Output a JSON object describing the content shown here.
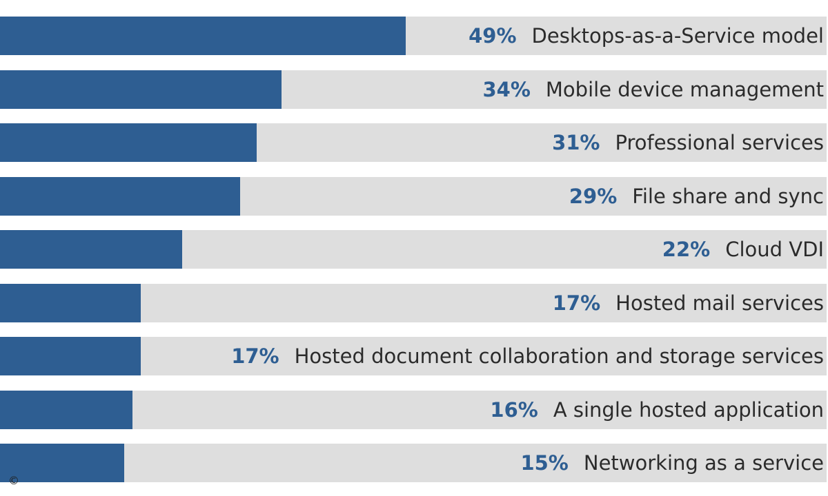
{
  "chart_data": {
    "type": "bar",
    "orientation": "horizontal",
    "categories": [
      "Desktops-as-a-Service model",
      "Mobile device management",
      "Professional services",
      "File share and sync",
      "Cloud VDI",
      "Hosted mail services",
      "Hosted document collaboration and storage services",
      "A single hosted application",
      "Networking as a service"
    ],
    "values": [
      49,
      34,
      31,
      29,
      22,
      17,
      17,
      16,
      15
    ],
    "value_labels": [
      "49%",
      "34%",
      "31%",
      "29%",
      "22%",
      "17%",
      "17%",
      "16%",
      "15%"
    ],
    "unit": "%",
    "xlim": [
      0,
      100
    ],
    "grid": false,
    "legend": "none",
    "colors": {
      "bar": "#2e5e92",
      "track": "#dedede",
      "value_label": "#2e5e92",
      "category_label": "#2b2b2b"
    }
  },
  "footer": {
    "copyright": "©"
  }
}
